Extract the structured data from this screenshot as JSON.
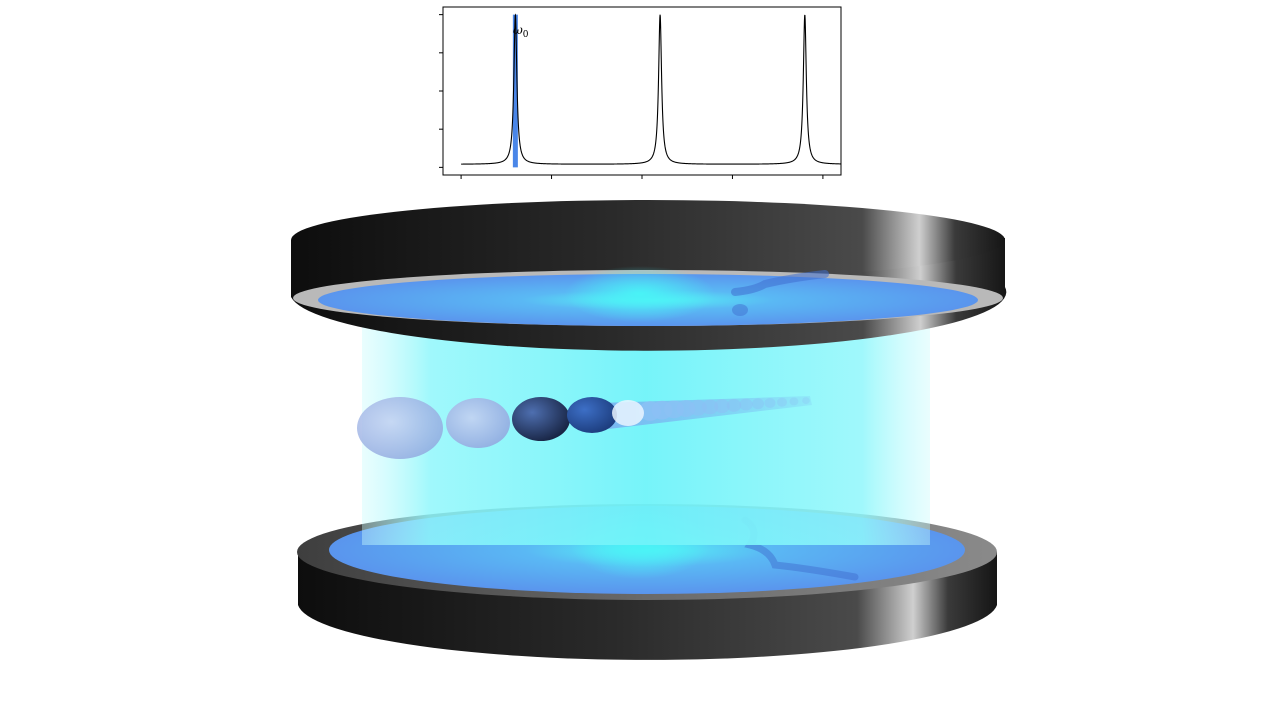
{
  "spectrum_plot": {
    "peak_label": "ω",
    "peak_label_subscript": "0",
    "chart_data": {
      "type": "line",
      "title": "",
      "xlabel": "",
      "ylabel": "",
      "xlim": [
        -0.2,
        4.2
      ],
      "ylim": [
        -0.05,
        1.05
      ],
      "xticks": [
        0,
        1,
        2,
        3,
        4
      ],
      "yticks": [
        0,
        0.25,
        0.5,
        0.75,
        1.0
      ],
      "resonance_centers": [
        0.6,
        2.2,
        3.8
      ],
      "linewidth_hwhm": 0.02,
      "baseline": 0.02,
      "peak_height": 1.0,
      "highlight_center": 0.6,
      "colors": {
        "line": "#000000",
        "highlight": "#4a86e8",
        "highlight_dark": "#0a1a4a"
      }
    }
  },
  "cavity": {
    "colors": {
      "mirror": "#1c1c1c",
      "mirror_top_face": "#5aa3f0",
      "field": "#7ff6fb",
      "field_core": "#46f0f6",
      "atoms_light": "#9ab4e6",
      "atoms_dark": "#1a2b52",
      "atoms_bright": "#4f86df"
    }
  }
}
